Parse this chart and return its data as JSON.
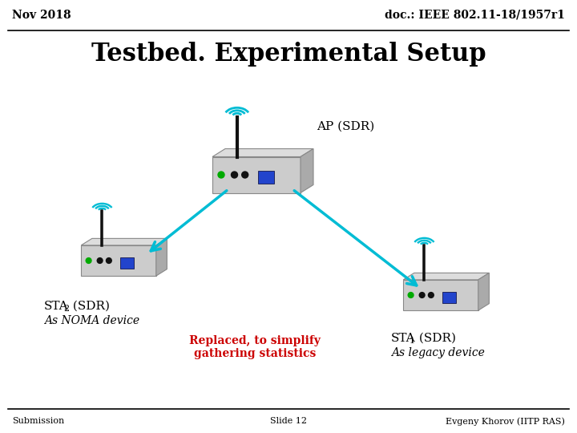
{
  "title": "Testbed. Experimental Setup",
  "header_left": "Nov 2018",
  "header_right": "doc.: IEEE 802.11-18/1957r1",
  "footer_left": "Submission",
  "footer_center": "Slide 12",
  "footer_right": "Evgeny Khorov (IITP RAS)",
  "ap_label": "AP (SDR)",
  "sta2_label1": "STA",
  "sta2_sub": "2",
  "sta2_label2": " (SDR)",
  "sta2_desc": "As NOMA device",
  "sta1_label1": "STA",
  "sta1_sub": "1",
  "sta1_label2": " (SDR)",
  "sta1_desc": "As legacy device",
  "replaced_text1": "Replaced, to simplify",
  "replaced_text2": "gathering statistics",
  "bg_color": "#ffffff",
  "router_body_color": "#cccccc",
  "router_side_color": "#aaaaaa",
  "router_top_color": "#dddddd",
  "antenna_color": "#111111",
  "wifi_color": "#00bcd4",
  "arrow_color": "#00bcd4",
  "green_dot_color": "#00aa00",
  "black_dot_color": "#111111",
  "blue_port_color": "#2244cc",
  "replaced_color": "#cc0000",
  "header_line_color": "#000000",
  "footer_line_color": "#000000"
}
